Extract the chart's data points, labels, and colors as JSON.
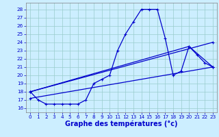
{
  "xlabel": "Graphe des températures (°c)",
  "bg_color": "#cceeff",
  "line_color": "#0000cc",
  "grid_color": "#99cccc",
  "xlim": [
    -0.5,
    23.5
  ],
  "ylim": [
    15.5,
    28.8
  ],
  "yticks": [
    16,
    17,
    18,
    19,
    20,
    21,
    22,
    23,
    24,
    25,
    26,
    27,
    28
  ],
  "xticks": [
    0,
    1,
    2,
    3,
    4,
    5,
    6,
    7,
    8,
    9,
    10,
    11,
    12,
    13,
    14,
    15,
    16,
    17,
    18,
    19,
    20,
    21,
    22,
    23
  ],
  "main_x": [
    0,
    1,
    2,
    3,
    4,
    5,
    6,
    7,
    8,
    9,
    10,
    11,
    12,
    13,
    14,
    15,
    16,
    17,
    18,
    19,
    20,
    21,
    22,
    23
  ],
  "main_y": [
    18.0,
    17.0,
    16.5,
    16.5,
    16.5,
    16.5,
    16.5,
    17.0,
    19.0,
    19.5,
    20.0,
    23.0,
    25.0,
    26.5,
    28.0,
    28.0,
    28.0,
    24.5,
    20.0,
    20.5,
    23.5,
    22.5,
    21.5,
    21.0
  ],
  "line1_x": [
    0,
    23
  ],
  "line1_y": [
    17.2,
    21.0
  ],
  "line2_x": [
    0,
    20,
    23
  ],
  "line2_y": [
    18.0,
    23.5,
    21.0
  ],
  "line3_x": [
    0,
    23
  ],
  "line3_y": [
    18.0,
    24.0
  ],
  "markersize": 3.5,
  "linewidth": 0.9,
  "xlabel_fontsize": 7,
  "tick_fontsize": 5.2
}
